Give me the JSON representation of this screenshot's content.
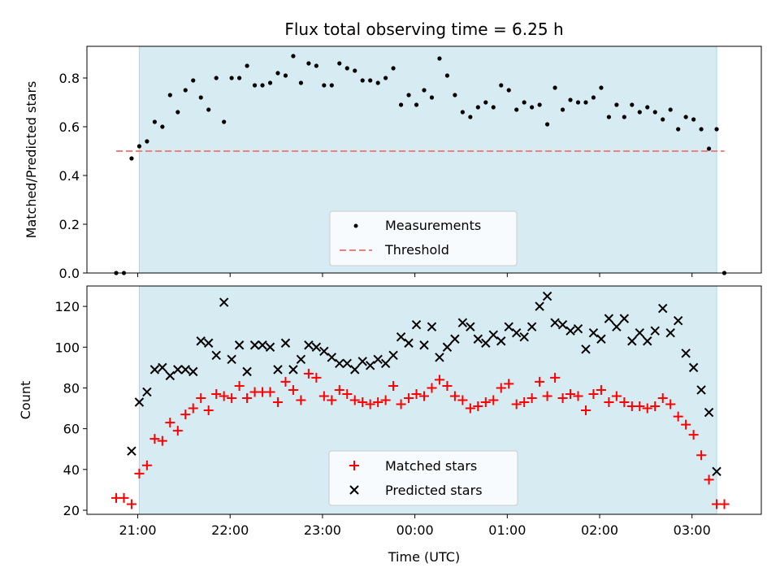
{
  "chart_data": [
    {
      "type": "scatter",
      "title": "Flux total observing time = 6.25 h",
      "ylabel": "Matched/Predicted stars",
      "ylim": [
        0,
        0.93
      ],
      "yticks": [
        0.0,
        0.2,
        0.4,
        0.6,
        0.8
      ],
      "xlim": [
        "20:27",
        "03:45"
      ],
      "shaded_span": [
        "21:01",
        "03:16"
      ],
      "threshold": {
        "name": "Threshold",
        "value": 0.5,
        "x_range": [
          "20:46",
          "03:21"
        ],
        "color": "#f08080"
      },
      "legend": {
        "placement": "lower-center",
        "entries": [
          "Measurements",
          "Threshold"
        ]
      },
      "series": [
        {
          "name": "Measurements",
          "color": "#000000",
          "marker": "dot",
          "points": [
            [
              "20:46",
              0.0
            ],
            [
              "20:51",
              0.0
            ],
            [
              "20:56",
              0.47
            ],
            [
              "21:01",
              0.52
            ],
            [
              "21:06",
              0.54
            ],
            [
              "21:11",
              0.62
            ],
            [
              "21:16",
              0.6
            ],
            [
              "21:21",
              0.73
            ],
            [
              "21:26",
              0.66
            ],
            [
              "21:31",
              0.75
            ],
            [
              "21:36",
              0.79
            ],
            [
              "21:41",
              0.72
            ],
            [
              "21:46",
              0.67
            ],
            [
              "21:51",
              0.8
            ],
            [
              "21:56",
              0.62
            ],
            [
              "22:01",
              0.8
            ],
            [
              "22:06",
              0.8
            ],
            [
              "22:11",
              0.85
            ],
            [
              "22:16",
              0.77
            ],
            [
              "22:21",
              0.77
            ],
            [
              "22:26",
              0.78
            ],
            [
              "22:31",
              0.82
            ],
            [
              "22:36",
              0.81
            ],
            [
              "22:41",
              0.89
            ],
            [
              "22:46",
              0.78
            ],
            [
              "22:51",
              0.86
            ],
            [
              "22:56",
              0.85
            ],
            [
              "23:01",
              0.77
            ],
            [
              "23:06",
              0.77
            ],
            [
              "23:11",
              0.86
            ],
            [
              "23:16",
              0.84
            ],
            [
              "23:21",
              0.83
            ],
            [
              "23:26",
              0.79
            ],
            [
              "23:31",
              0.79
            ],
            [
              "23:36",
              0.78
            ],
            [
              "23:41",
              0.8
            ],
            [
              "23:46",
              0.84
            ],
            [
              "23:51",
              0.69
            ],
            [
              "23:56",
              0.73
            ],
            [
              "00:01",
              0.69
            ],
            [
              "00:06",
              0.75
            ],
            [
              "00:11",
              0.72
            ],
            [
              "00:16",
              0.88
            ],
            [
              "00:21",
              0.81
            ],
            [
              "00:26",
              0.73
            ],
            [
              "00:31",
              0.66
            ],
            [
              "00:36",
              0.64
            ],
            [
              "00:41",
              0.68
            ],
            [
              "00:46",
              0.7
            ],
            [
              "00:51",
              0.68
            ],
            [
              "00:56",
              0.77
            ],
            [
              "01:01",
              0.75
            ],
            [
              "01:06",
              0.67
            ],
            [
              "01:11",
              0.7
            ],
            [
              "01:16",
              0.68
            ],
            [
              "01:21",
              0.69
            ],
            [
              "01:26",
              0.61
            ],
            [
              "01:31",
              0.76
            ],
            [
              "01:36",
              0.67
            ],
            [
              "01:41",
              0.71
            ],
            [
              "01:46",
              0.7
            ],
            [
              "01:51",
              0.7
            ],
            [
              "01:56",
              0.72
            ],
            [
              "02:01",
              0.76
            ],
            [
              "02:06",
              0.64
            ],
            [
              "02:11",
              0.69
            ],
            [
              "02:16",
              0.64
            ],
            [
              "02:21",
              0.69
            ],
            [
              "02:26",
              0.66
            ],
            [
              "02:31",
              0.68
            ],
            [
              "02:36",
              0.66
            ],
            [
              "02:41",
              0.63
            ],
            [
              "02:46",
              0.67
            ],
            [
              "02:51",
              0.59
            ],
            [
              "02:56",
              0.64
            ],
            [
              "03:01",
              0.63
            ],
            [
              "03:06",
              0.59
            ],
            [
              "03:11",
              0.51
            ],
            [
              "03:16",
              0.59
            ],
            [
              "03:21",
              0.0
            ]
          ]
        }
      ]
    },
    {
      "type": "scatter",
      "xlabel": "Time (UTC)",
      "ylabel": "Count",
      "ylim": [
        18,
        130
      ],
      "yticks": [
        20,
        40,
        60,
        80,
        100,
        120
      ],
      "xlim": [
        "20:27",
        "03:45"
      ],
      "xticks": [
        "21:00",
        "22:00",
        "23:00",
        "00:00",
        "01:00",
        "02:00",
        "03:00"
      ],
      "shaded_span": [
        "21:01",
        "03:16"
      ],
      "legend": {
        "placement": "lower-center",
        "entries": [
          "Matched stars",
          "Predicted stars"
        ]
      },
      "series": [
        {
          "name": "Matched stars",
          "color": "#ff0000",
          "marker": "plus",
          "points": [
            [
              "20:46",
              26
            ],
            [
              "20:51",
              26
            ],
            [
              "20:56",
              23
            ],
            [
              "21:01",
              38
            ],
            [
              "21:06",
              42
            ],
            [
              "21:11",
              55
            ],
            [
              "21:16",
              54
            ],
            [
              "21:21",
              63
            ],
            [
              "21:26",
              59
            ],
            [
              "21:31",
              67
            ],
            [
              "21:36",
              70
            ],
            [
              "21:41",
              75
            ],
            [
              "21:46",
              69
            ],
            [
              "21:51",
              77
            ],
            [
              "21:56",
              76
            ],
            [
              "22:01",
              75
            ],
            [
              "22:06",
              81
            ],
            [
              "22:11",
              75
            ],
            [
              "22:16",
              78
            ],
            [
              "22:21",
              78
            ],
            [
              "22:26",
              78
            ],
            [
              "22:31",
              73
            ],
            [
              "22:36",
              83
            ],
            [
              "22:41",
              79
            ],
            [
              "22:46",
              74
            ],
            [
              "22:51",
              87
            ],
            [
              "22:56",
              85
            ],
            [
              "23:01",
              76
            ],
            [
              "23:06",
              74
            ],
            [
              "23:11",
              79
            ],
            [
              "23:16",
              77
            ],
            [
              "23:21",
              74
            ],
            [
              "23:26",
              73
            ],
            [
              "23:31",
              72
            ],
            [
              "23:36",
              73
            ],
            [
              "23:41",
              74
            ],
            [
              "23:46",
              81
            ],
            [
              "23:51",
              72
            ],
            [
              "23:56",
              75
            ],
            [
              "00:01",
              77
            ],
            [
              "00:06",
              76
            ],
            [
              "00:11",
              80
            ],
            [
              "00:16",
              84
            ],
            [
              "00:21",
              81
            ],
            [
              "00:26",
              76
            ],
            [
              "00:31",
              74
            ],
            [
              "00:36",
              70
            ],
            [
              "00:41",
              71
            ],
            [
              "00:46",
              73
            ],
            [
              "00:51",
              74
            ],
            [
              "00:56",
              80
            ],
            [
              "01:01",
              82
            ],
            [
              "01:06",
              72
            ],
            [
              "01:11",
              73
            ],
            [
              "01:16",
              75
            ],
            [
              "01:21",
              83
            ],
            [
              "01:26",
              76
            ],
            [
              "01:31",
              85
            ],
            [
              "01:36",
              75
            ],
            [
              "01:41",
              77
            ],
            [
              "01:46",
              76
            ],
            [
              "01:51",
              69
            ],
            [
              "01:56",
              77
            ],
            [
              "02:01",
              79
            ],
            [
              "02:06",
              73
            ],
            [
              "02:11",
              76
            ],
            [
              "02:16",
              73
            ],
            [
              "02:21",
              71
            ],
            [
              "02:26",
              71
            ],
            [
              "02:31",
              70
            ],
            [
              "02:36",
              71
            ],
            [
              "02:41",
              75
            ],
            [
              "02:46",
              72
            ],
            [
              "02:51",
              66
            ],
            [
              "02:56",
              62
            ],
            [
              "03:01",
              57
            ],
            [
              "03:06",
              47
            ],
            [
              "03:11",
              35
            ],
            [
              "03:16",
              23
            ],
            [
              "03:21",
              23
            ]
          ]
        },
        {
          "name": "Predicted stars",
          "color": "#000000",
          "marker": "x",
          "points": [
            [
              "20:56",
              49
            ],
            [
              "21:01",
              73
            ],
            [
              "21:06",
              78
            ],
            [
              "21:11",
              89
            ],
            [
              "21:16",
              90
            ],
            [
              "21:21",
              86
            ],
            [
              "21:26",
              89
            ],
            [
              "21:31",
              89
            ],
            [
              "21:36",
              88
            ],
            [
              "21:41",
              103
            ],
            [
              "21:46",
              102
            ],
            [
              "21:51",
              96
            ],
            [
              "21:56",
              122
            ],
            [
              "22:01",
              94
            ],
            [
              "22:06",
              101
            ],
            [
              "22:11",
              88
            ],
            [
              "22:16",
              101
            ],
            [
              "22:21",
              101
            ],
            [
              "22:26",
              100
            ],
            [
              "22:31",
              89
            ],
            [
              "22:36",
              102
            ],
            [
              "22:41",
              89
            ],
            [
              "22:46",
              94
            ],
            [
              "22:51",
              101
            ],
            [
              "22:56",
              100
            ],
            [
              "23:01",
              98
            ],
            [
              "23:06",
              95
            ],
            [
              "23:11",
              92
            ],
            [
              "23:16",
              92
            ],
            [
              "23:21",
              89
            ],
            [
              "23:26",
              93
            ],
            [
              "23:31",
              91
            ],
            [
              "23:36",
              94
            ],
            [
              "23:41",
              92
            ],
            [
              "23:46",
              96
            ],
            [
              "23:51",
              105
            ],
            [
              "23:56",
              102
            ],
            [
              "00:01",
              111
            ],
            [
              "00:06",
              101
            ],
            [
              "00:11",
              110
            ],
            [
              "00:16",
              95
            ],
            [
              "00:21",
              100
            ],
            [
              "00:26",
              104
            ],
            [
              "00:31",
              112
            ],
            [
              "00:36",
              110
            ],
            [
              "00:41",
              104
            ],
            [
              "00:46",
              102
            ],
            [
              "00:51",
              106
            ],
            [
              "00:56",
              103
            ],
            [
              "01:01",
              110
            ],
            [
              "01:06",
              107
            ],
            [
              "01:11",
              105
            ],
            [
              "01:16",
              110
            ],
            [
              "01:21",
              120
            ],
            [
              "01:26",
              125
            ],
            [
              "01:31",
              112
            ],
            [
              "01:36",
              111
            ],
            [
              "01:41",
              108
            ],
            [
              "01:46",
              109
            ],
            [
              "01:51",
              99
            ],
            [
              "01:56",
              107
            ],
            [
              "02:01",
              104
            ],
            [
              "02:06",
              114
            ],
            [
              "02:11",
              110
            ],
            [
              "02:16",
              114
            ],
            [
              "02:21",
              103
            ],
            [
              "02:26",
              107
            ],
            [
              "02:31",
              103
            ],
            [
              "02:36",
              108
            ],
            [
              "02:41",
              119
            ],
            [
              "02:46",
              107
            ],
            [
              "02:51",
              113
            ],
            [
              "02:56",
              97
            ],
            [
              "03:01",
              90
            ],
            [
              "03:06",
              79
            ],
            [
              "03:11",
              68
            ],
            [
              "03:16",
              39
            ]
          ]
        }
      ]
    }
  ]
}
